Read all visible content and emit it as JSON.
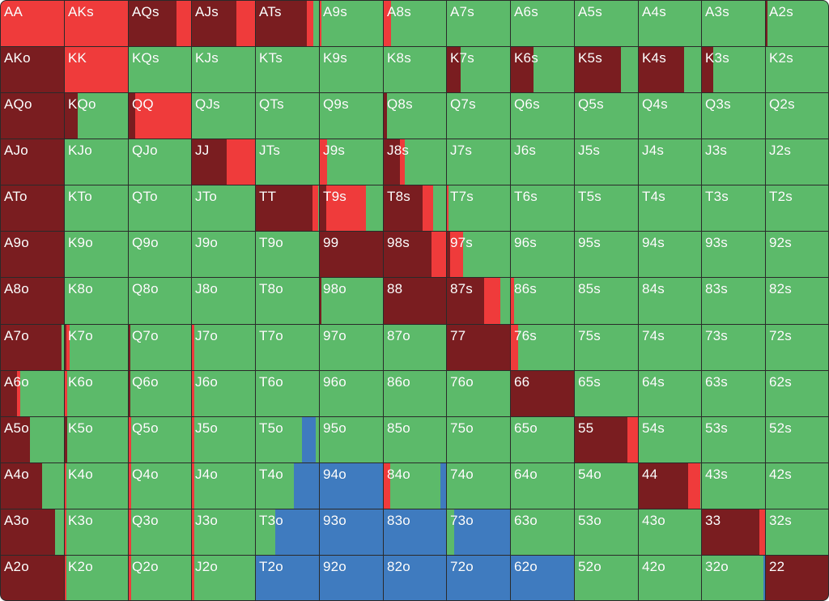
{
  "legend": {
    "colors": {
      "raise": "#7a1d20",
      "call": "#ef3b3b",
      "fold": "#5cba6a",
      "allin": "#3f7bbf"
    }
  },
  "ranks": [
    "A",
    "K",
    "Q",
    "J",
    "T",
    "9",
    "8",
    "7",
    "6",
    "5",
    "4",
    "3",
    "2"
  ],
  "range": [
    [
      {
        "hand": "AA",
        "mix": {
          "call": 1
        }
      },
      {
        "hand": "AKs",
        "mix": {
          "call": 1
        }
      },
      {
        "hand": "AQs",
        "mix": {
          "raise": 0.75,
          "call": 0.25
        }
      },
      {
        "hand": "AJs",
        "mix": {
          "raise": 0.7,
          "call": 0.3
        }
      },
      {
        "hand": "ATs",
        "mix": {
          "raise": 0.8,
          "call": 0.1,
          "fold": 0.1
        }
      },
      {
        "hand": "A9s",
        "mix": {
          "call": 0.02,
          "fold": 0.98
        }
      },
      {
        "hand": "A8s",
        "mix": {
          "call": 0.12,
          "fold": 0.88
        }
      },
      {
        "hand": "A7s",
        "mix": {
          "fold": 1
        }
      },
      {
        "hand": "A6s",
        "mix": {
          "fold": 1
        }
      },
      {
        "hand": "A5s",
        "mix": {
          "fold": 1
        }
      },
      {
        "hand": "A4s",
        "mix": {
          "fold": 1
        }
      },
      {
        "hand": "A3s",
        "mix": {
          "fold": 1
        }
      },
      {
        "hand": "A2s",
        "mix": {
          "raise": 0.02,
          "fold": 0.98
        }
      }
    ],
    [
      {
        "hand": "AKo",
        "mix": {
          "raise": 1
        }
      },
      {
        "hand": "KK",
        "mix": {
          "call": 1
        }
      },
      {
        "hand": "KQs",
        "mix": {
          "fold": 1
        }
      },
      {
        "hand": "KJs",
        "mix": {
          "fold": 1
        }
      },
      {
        "hand": "KTs",
        "mix": {
          "fold": 1
        }
      },
      {
        "hand": "K9s",
        "mix": {
          "fold": 1
        }
      },
      {
        "hand": "K8s",
        "mix": {
          "fold": 1
        }
      },
      {
        "hand": "K7s",
        "mix": {
          "raise": 0.22,
          "fold": 0.78
        }
      },
      {
        "hand": "K6s",
        "mix": {
          "raise": 0.35,
          "fold": 0.65
        }
      },
      {
        "hand": "K5s",
        "mix": {
          "raise": 0.72,
          "fold": 0.28
        }
      },
      {
        "hand": "K4s",
        "mix": {
          "raise": 0.72,
          "fold": 0.28
        }
      },
      {
        "hand": "K3s",
        "mix": {
          "raise": 0.18,
          "fold": 0.82
        }
      },
      {
        "hand": "K2s",
        "mix": {
          "fold": 1
        }
      }
    ],
    [
      {
        "hand": "AQo",
        "mix": {
          "raise": 1
        }
      },
      {
        "hand": "KQo",
        "mix": {
          "raise": 0.2,
          "fold": 0.8
        }
      },
      {
        "hand": "QQ",
        "mix": {
          "raise": 0.1,
          "call": 0.9
        }
      },
      {
        "hand": "QJs",
        "mix": {
          "fold": 1
        }
      },
      {
        "hand": "QTs",
        "mix": {
          "fold": 1
        }
      },
      {
        "hand": "Q9s",
        "mix": {
          "fold": 1
        }
      },
      {
        "hand": "Q8s",
        "mix": {
          "raise": 0.05,
          "fold": 0.95
        }
      },
      {
        "hand": "Q7s",
        "mix": {
          "fold": 1
        }
      },
      {
        "hand": "Q6s",
        "mix": {
          "fold": 1
        }
      },
      {
        "hand": "Q5s",
        "mix": {
          "fold": 1
        }
      },
      {
        "hand": "Q4s",
        "mix": {
          "fold": 1
        }
      },
      {
        "hand": "Q3s",
        "mix": {
          "fold": 1
        }
      },
      {
        "hand": "Q2s",
        "mix": {
          "fold": 1
        }
      }
    ],
    [
      {
        "hand": "AJo",
        "mix": {
          "raise": 1
        }
      },
      {
        "hand": "KJo",
        "mix": {
          "fold": 1
        }
      },
      {
        "hand": "QJo",
        "mix": {
          "fold": 1
        }
      },
      {
        "hand": "JJ",
        "mix": {
          "raise": 0.55,
          "call": 0.45
        }
      },
      {
        "hand": "JTs",
        "mix": {
          "fold": 1
        }
      },
      {
        "hand": "J9s",
        "mix": {
          "call": 0.12,
          "fold": 0.88
        }
      },
      {
        "hand": "J8s",
        "mix": {
          "raise": 0.25,
          "call": 0.08,
          "fold": 0.67
        }
      },
      {
        "hand": "J7s",
        "mix": {
          "fold": 1
        }
      },
      {
        "hand": "J6s",
        "mix": {
          "fold": 1
        }
      },
      {
        "hand": "J5s",
        "mix": {
          "fold": 1
        }
      },
      {
        "hand": "J4s",
        "mix": {
          "fold": 1
        }
      },
      {
        "hand": "J3s",
        "mix": {
          "fold": 1
        }
      },
      {
        "hand": "J2s",
        "mix": {
          "fold": 1
        }
      }
    ],
    [
      {
        "hand": "ATo",
        "mix": {
          "raise": 1
        }
      },
      {
        "hand": "KTo",
        "mix": {
          "fold": 1
        }
      },
      {
        "hand": "QTo",
        "mix": {
          "fold": 1
        }
      },
      {
        "hand": "JTo",
        "mix": {
          "fold": 1
        }
      },
      {
        "hand": "TT",
        "mix": {
          "raise": 0.88,
          "call": 0.1,
          "fold": 0.02
        }
      },
      {
        "hand": "T9s",
        "mix": {
          "raise": 0.1,
          "call": 0.62,
          "fold": 0.28
        }
      },
      {
        "hand": "T8s",
        "mix": {
          "raise": 0.62,
          "call": 0.16,
          "fold": 0.22
        }
      },
      {
        "hand": "T7s",
        "mix": {
          "call": 0.02,
          "fold": 0.98
        }
      },
      {
        "hand": "T6s",
        "mix": {
          "fold": 1
        }
      },
      {
        "hand": "T5s",
        "mix": {
          "fold": 1
        }
      },
      {
        "hand": "T4s",
        "mix": {
          "fold": 1
        }
      },
      {
        "hand": "T3s",
        "mix": {
          "fold": 1
        }
      },
      {
        "hand": "T2s",
        "mix": {
          "fold": 1
        }
      }
    ],
    [
      {
        "hand": "A9o",
        "mix": {
          "raise": 1
        }
      },
      {
        "hand": "K9o",
        "mix": {
          "fold": 1
        }
      },
      {
        "hand": "Q9o",
        "mix": {
          "fold": 1
        }
      },
      {
        "hand": "J9o",
        "mix": {
          "fold": 1
        }
      },
      {
        "hand": "T9o",
        "mix": {
          "fold": 1
        }
      },
      {
        "hand": "99",
        "mix": {
          "raise": 1
        }
      },
      {
        "hand": "98s",
        "mix": {
          "raise": 0.75,
          "call": 0.25
        }
      },
      {
        "hand": "97s",
        "mix": {
          "raise": 0.05,
          "call": 0.2,
          "fold": 0.75
        }
      },
      {
        "hand": "96s",
        "mix": {
          "fold": 1
        }
      },
      {
        "hand": "95s",
        "mix": {
          "fold": 1
        }
      },
      {
        "hand": "94s",
        "mix": {
          "fold": 1
        }
      },
      {
        "hand": "93s",
        "mix": {
          "fold": 1
        }
      },
      {
        "hand": "92s",
        "mix": {
          "fold": 1
        }
      }
    ],
    [
      {
        "hand": "A8o",
        "mix": {
          "raise": 1
        }
      },
      {
        "hand": "K8o",
        "mix": {
          "fold": 1
        }
      },
      {
        "hand": "Q8o",
        "mix": {
          "fold": 1
        }
      },
      {
        "hand": "J8o",
        "mix": {
          "fold": 1
        }
      },
      {
        "hand": "T8o",
        "mix": {
          "fold": 1
        }
      },
      {
        "hand": "98o",
        "mix": {
          "raise": 0.02,
          "fold": 0.98
        }
      },
      {
        "hand": "88",
        "mix": {
          "raise": 1
        }
      },
      {
        "hand": "87s",
        "mix": {
          "raise": 0.58,
          "call": 0.25,
          "fold": 0.17
        }
      },
      {
        "hand": "86s",
        "mix": {
          "call": 0.05,
          "fold": 0.95
        }
      },
      {
        "hand": "85s",
        "mix": {
          "fold": 1
        }
      },
      {
        "hand": "84s",
        "mix": {
          "fold": 1
        }
      },
      {
        "hand": "83s",
        "mix": {
          "fold": 1
        }
      },
      {
        "hand": "82s",
        "mix": {
          "fold": 1
        }
      }
    ],
    [
      {
        "hand": "A7o",
        "mix": {
          "raise": 0.95,
          "fold": 0.05
        }
      },
      {
        "hand": "K7o",
        "mix": {
          "raise": 0.03,
          "call": 0.05,
          "fold": 0.92
        }
      },
      {
        "hand": "Q7o",
        "mix": {
          "raise": 0.02,
          "fold": 0.98
        }
      },
      {
        "hand": "J7o",
        "mix": {
          "call": 0.04,
          "fold": 0.96
        }
      },
      {
        "hand": "T7o",
        "mix": {
          "fold": 1
        }
      },
      {
        "hand": "97o",
        "mix": {
          "fold": 1
        }
      },
      {
        "hand": "87o",
        "mix": {
          "fold": 1
        }
      },
      {
        "hand": "77",
        "mix": {
          "raise": 1
        }
      },
      {
        "hand": "76s",
        "mix": {
          "call": 0.12,
          "fold": 0.88
        }
      },
      {
        "hand": "75s",
        "mix": {
          "fold": 1
        }
      },
      {
        "hand": "74s",
        "mix": {
          "fold": 1
        }
      },
      {
        "hand": "73s",
        "mix": {
          "fold": 1
        }
      },
      {
        "hand": "72s",
        "mix": {
          "fold": 1
        }
      }
    ],
    [
      {
        "hand": "A6o",
        "mix": {
          "raise": 0.25,
          "call": 0.05,
          "fold": 0.7
        }
      },
      {
        "hand": "K6o",
        "mix": {
          "call": 0.04,
          "fold": 0.96
        }
      },
      {
        "hand": "Q6o",
        "mix": {
          "raise": 0.02,
          "fold": 0.98
        }
      },
      {
        "hand": "J6o",
        "mix": {
          "call": 0.04,
          "fold": 0.96
        }
      },
      {
        "hand": "T6o",
        "mix": {
          "fold": 1
        }
      },
      {
        "hand": "96o",
        "mix": {
          "fold": 1
        }
      },
      {
        "hand": "86o",
        "mix": {
          "fold": 1
        }
      },
      {
        "hand": "76o",
        "mix": {
          "fold": 1
        }
      },
      {
        "hand": "66",
        "mix": {
          "raise": 1
        }
      },
      {
        "hand": "65s",
        "mix": {
          "fold": 1
        }
      },
      {
        "hand": "64s",
        "mix": {
          "fold": 1
        }
      },
      {
        "hand": "63s",
        "mix": {
          "fold": 1
        }
      },
      {
        "hand": "62s",
        "mix": {
          "fold": 1
        }
      }
    ],
    [
      {
        "hand": "A5o",
        "mix": {
          "raise": 0.45,
          "fold": 0.55
        }
      },
      {
        "hand": "K5o",
        "mix": {
          "raise": 0.04,
          "fold": 0.96
        }
      },
      {
        "hand": "Q5o",
        "mix": {
          "call": 0.04,
          "fold": 0.96
        }
      },
      {
        "hand": "J5o",
        "mix": {
          "call": 0.04,
          "fold": 0.96
        }
      },
      {
        "hand": "T5o",
        "mix": {
          "fold": 0.72,
          "allin": 0.22,
          "fold2": 0.06
        }
      },
      {
        "hand": "95o",
        "mix": {
          "fold": 1
        }
      },
      {
        "hand": "85o",
        "mix": {
          "fold": 1
        }
      },
      {
        "hand": "75o",
        "mix": {
          "fold": 1
        }
      },
      {
        "hand": "65o",
        "mix": {
          "fold": 1
        }
      },
      {
        "hand": "55",
        "mix": {
          "raise": 0.82,
          "call": 0.18
        }
      },
      {
        "hand": "54s",
        "mix": {
          "fold": 1
        }
      },
      {
        "hand": "53s",
        "mix": {
          "fold": 1
        }
      },
      {
        "hand": "52s",
        "mix": {
          "fold": 1
        }
      }
    ],
    [
      {
        "hand": "A4o",
        "mix": {
          "raise": 0.65,
          "fold": 0.35
        }
      },
      {
        "hand": "K4o",
        "mix": {
          "call": 0.03,
          "fold": 0.97
        }
      },
      {
        "hand": "Q4o",
        "mix": {
          "call": 0.04,
          "fold": 0.96
        }
      },
      {
        "hand": "J4o",
        "mix": {
          "call": 0.04,
          "fold": 0.96
        }
      },
      {
        "hand": "T4o",
        "mix": {
          "fold": 0.6,
          "allin": 0.4
        }
      },
      {
        "hand": "94o",
        "mix": {
          "allin": 1
        }
      },
      {
        "hand": "84o",
        "mix": {
          "call": 0.1,
          "fold": 0.8,
          "allin": 0.1
        }
      },
      {
        "hand": "74o",
        "mix": {
          "fold": 1
        }
      },
      {
        "hand": "64o",
        "mix": {
          "fold": 1
        }
      },
      {
        "hand": "54o",
        "mix": {
          "fold": 1
        }
      },
      {
        "hand": "44",
        "mix": {
          "raise": 0.78,
          "call": 0.2,
          "fold": 0.02
        }
      },
      {
        "hand": "43s",
        "mix": {
          "fold": 1
        }
      },
      {
        "hand": "42s",
        "mix": {
          "fold": 1
        }
      }
    ],
    [
      {
        "hand": "A3o",
        "mix": {
          "raise": 0.85,
          "fold": 0.15
        }
      },
      {
        "hand": "K3o",
        "mix": {
          "call": 0.03,
          "fold": 0.97
        }
      },
      {
        "hand": "Q3o",
        "mix": {
          "call": 0.04,
          "fold": 0.96
        }
      },
      {
        "hand": "J3o",
        "mix": {
          "call": 0.04,
          "fold": 0.96
        }
      },
      {
        "hand": "T3o",
        "mix": {
          "fold": 0.3,
          "allin": 0.7
        }
      },
      {
        "hand": "93o",
        "mix": {
          "allin": 1
        }
      },
      {
        "hand": "83o",
        "mix": {
          "allin": 1
        }
      },
      {
        "hand": "73o",
        "mix": {
          "fold": 0.12,
          "allin": 0.88
        }
      },
      {
        "hand": "63o",
        "mix": {
          "fold": 1
        }
      },
      {
        "hand": "53o",
        "mix": {
          "fold": 1
        }
      },
      {
        "hand": "43o",
        "mix": {
          "fold": 1
        }
      },
      {
        "hand": "33",
        "mix": {
          "raise": 0.9,
          "call": 0.1
        }
      },
      {
        "hand": "32s",
        "mix": {
          "fold": 1
        }
      }
    ],
    [
      {
        "hand": "A2o",
        "mix": {
          "raise": 1
        }
      },
      {
        "hand": "K2o",
        "mix": {
          "call": 0.03,
          "fold": 0.97
        }
      },
      {
        "hand": "Q2o",
        "mix": {
          "call": 0.04,
          "fold": 0.96
        }
      },
      {
        "hand": "J2o",
        "mix": {
          "call": 0.04,
          "fold": 0.96
        }
      },
      {
        "hand": "T2o",
        "mix": {
          "allin": 1
        }
      },
      {
        "hand": "92o",
        "mix": {
          "allin": 1
        }
      },
      {
        "hand": "82o",
        "mix": {
          "allin": 1
        }
      },
      {
        "hand": "72o",
        "mix": {
          "allin": 1
        }
      },
      {
        "hand": "62o",
        "mix": {
          "allin": 1
        }
      },
      {
        "hand": "52o",
        "mix": {
          "fold": 1
        }
      },
      {
        "hand": "42o",
        "mix": {
          "fold": 1
        }
      },
      {
        "hand": "32o",
        "mix": {
          "fold": 0.96,
          "allin": 0.04
        }
      },
      {
        "hand": "22",
        "mix": {
          "raise": 1
        }
      }
    ]
  ]
}
